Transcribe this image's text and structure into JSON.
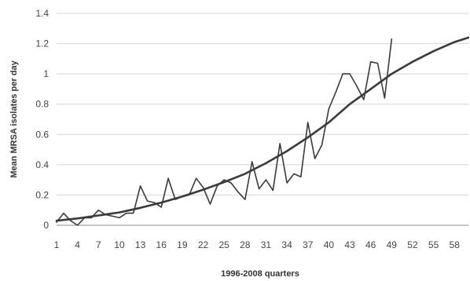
{
  "chart_data": {
    "type": "line",
    "xlabel": "1996-2008 quarters",
    "ylabel": "Mean MRSA isolates per day",
    "xlim": [
      1,
      60
    ],
    "ylim": [
      0,
      1.4
    ],
    "y_ticks": [
      0,
      0.2,
      0.4,
      0.6,
      0.8,
      1,
      1.2,
      1.4
    ],
    "y_tick_labels": [
      "0",
      "0.2",
      "0.4",
      "0.6",
      "0.8",
      "1",
      "1.2",
      "1.4"
    ],
    "x_ticks": [
      1,
      4,
      7,
      10,
      13,
      16,
      19,
      22,
      25,
      28,
      31,
      34,
      37,
      40,
      43,
      46,
      49,
      52,
      55,
      58
    ],
    "grid": "horizontal",
    "legend": "none",
    "series": [
      {
        "style": "thin",
        "x": [
          1,
          2,
          3,
          4,
          5,
          6,
          7,
          8,
          9,
          10,
          11,
          12,
          13,
          14,
          15,
          16,
          17,
          18,
          19,
          20,
          21,
          22,
          23,
          24,
          25,
          26,
          27,
          28,
          29,
          30,
          31,
          32,
          33,
          34,
          35,
          36,
          37,
          38,
          39,
          40,
          41,
          42,
          43,
          44,
          45,
          46,
          47,
          48,
          49
        ],
        "values": [
          0.02,
          0.08,
          0.03,
          0.0,
          0.05,
          0.05,
          0.1,
          0.07,
          0.06,
          0.05,
          0.08,
          0.08,
          0.26,
          0.16,
          0.15,
          0.12,
          0.31,
          0.17,
          0.19,
          0.2,
          0.31,
          0.25,
          0.14,
          0.26,
          0.3,
          0.28,
          0.22,
          0.17,
          0.42,
          0.24,
          0.3,
          0.23,
          0.54,
          0.28,
          0.34,
          0.32,
          0.68,
          0.44,
          0.53,
          0.77,
          0.88,
          1.0,
          1.0,
          0.92,
          0.83,
          1.08,
          1.07,
          0.84,
          1.23
        ]
      },
      {
        "style": "thick-trend",
        "x": [
          1,
          4,
          7,
          10,
          13,
          16,
          19,
          22,
          25,
          28,
          31,
          34,
          37,
          40,
          43,
          46,
          49,
          52,
          55,
          58,
          60
        ],
        "values": [
          0.03,
          0.045,
          0.065,
          0.085,
          0.115,
          0.15,
          0.19,
          0.235,
          0.285,
          0.34,
          0.41,
          0.49,
          0.58,
          0.68,
          0.8,
          0.9,
          1.0,
          1.08,
          1.15,
          1.21,
          1.24
        ]
      }
    ]
  },
  "colors": {
    "line": "#3a3a3a",
    "grid": "#d4d4d4",
    "axis": "#888888"
  }
}
